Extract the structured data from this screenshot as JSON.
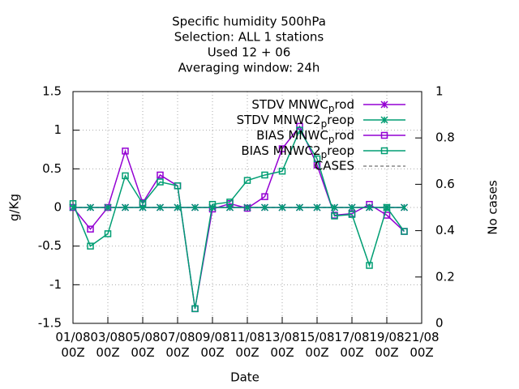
{
  "chart_data": {
    "type": "line",
    "title": [
      "Specific humidity 500hPa",
      "Selection: ALL       1 stations",
      "Used  12 + 06",
      "Averaging window: 24h"
    ],
    "xlabel": "Date",
    "ylabel": "g/Kg",
    "y2label": "No cases",
    "x": [
      0,
      1,
      2,
      3,
      4,
      5,
      6,
      7,
      8,
      9,
      10,
      11,
      12,
      13,
      14,
      15,
      16,
      17,
      18,
      19
    ],
    "xlim": [
      0,
      20
    ],
    "xticks": [
      {
        "value": 0,
        "label": "01/08\n00Z"
      },
      {
        "value": 2,
        "label": "03/08\n00Z"
      },
      {
        "value": 4,
        "label": "05/08\n00Z"
      },
      {
        "value": 6,
        "label": "07/08\n00Z"
      },
      {
        "value": 8,
        "label": "09/08\n00Z"
      },
      {
        "value": 10,
        "label": "11/08\n00Z"
      },
      {
        "value": 12,
        "label": "13/08\n00Z"
      },
      {
        "value": 14,
        "label": "15/08\n00Z"
      },
      {
        "value": 16,
        "label": "17/08\n00Z"
      },
      {
        "value": 18,
        "label": "19/08\n00Z"
      },
      {
        "value": 20,
        "label": "21/08\n00Z"
      }
    ],
    "ylim": [
      -1.5,
      1.5
    ],
    "yticks": [
      -1.5,
      -1,
      -0.5,
      0,
      0.5,
      1,
      1.5
    ],
    "y2lim": [
      0,
      1
    ],
    "y2ticks": [
      0,
      0.2,
      0.4,
      0.6,
      0.8,
      1
    ],
    "grid": true,
    "legend": "top-right",
    "series": [
      {
        "name": "STDV MNWC_prod",
        "color": "#9400d3",
        "marker": "x",
        "values": [
          0,
          0,
          0,
          0,
          0,
          0,
          0,
          0,
          0,
          0,
          0,
          0,
          0,
          0,
          0,
          0,
          0,
          0,
          0,
          0
        ]
      },
      {
        "name": "STDV MNWC2_preop",
        "color": "#009e73",
        "marker": "x",
        "values": [
          0,
          0,
          0,
          0,
          0,
          0,
          0,
          0,
          0,
          0,
          0,
          0,
          0,
          0,
          0,
          0,
          0,
          0,
          0,
          0
        ]
      },
      {
        "name": "BIAS MNWC_prod",
        "color": "#9400d3",
        "marker": "square",
        "values": [
          0,
          -0.28,
          0,
          0.73,
          0.06,
          0.42,
          0.28,
          -1.31,
          -0.02,
          0.05,
          -0.01,
          0.14,
          0.76,
          1.05,
          0.55,
          -0.1,
          -0.08,
          0.04,
          -0.1,
          -0.31
        ]
      },
      {
        "name": "BIAS MNWC2_preop",
        "color": "#009e73",
        "marker": "square",
        "values": [
          0.05,
          -0.5,
          -0.34,
          0.41,
          0.05,
          0.33,
          0.28,
          -1.31,
          0.04,
          0.07,
          0.35,
          0.42,
          0.47,
          1.0,
          0.63,
          -0.11,
          -0.09,
          -0.75,
          0,
          -0.31
        ]
      },
      {
        "name": "CASES",
        "color": "#888888",
        "marker": "dash",
        "axis": "y2",
        "values": [
          0.5,
          0.5,
          0.5,
          0.5,
          0.5,
          0.5,
          0.5,
          0.5,
          0.5,
          0.5,
          0.5,
          0.5,
          0.5,
          0.5,
          0.5,
          0.5,
          0.5,
          0.5,
          0.5,
          0.5
        ]
      }
    ]
  }
}
